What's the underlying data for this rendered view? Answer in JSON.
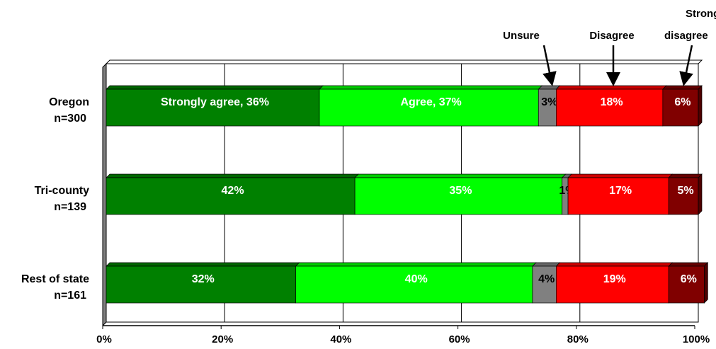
{
  "chart_data": {
    "type": "bar",
    "orientation": "horizontal",
    "stacked": true,
    "categories": [
      {
        "name": "Oregon",
        "n": "n=300"
      },
      {
        "name": "Tri-county",
        "n": "n=139"
      },
      {
        "name": "Rest of state",
        "n": "n=161"
      }
    ],
    "series": [
      {
        "name": "Strongly agree",
        "color": "#008000",
        "text_color": "#ffffff",
        "values": [
          36,
          42,
          32
        ]
      },
      {
        "name": "Agree",
        "color": "#00ff00",
        "text_color": "#ffffff",
        "values": [
          37,
          35,
          40
        ]
      },
      {
        "name": "Unsure",
        "color": "#808080",
        "text_color": "#000000",
        "values": [
          3,
          1,
          4
        ]
      },
      {
        "name": "Disagree",
        "color": "#ff0000",
        "text_color": "#ffffff",
        "values": [
          18,
          17,
          19
        ]
      },
      {
        "name": "Strongly disagree",
        "color": "#800000",
        "text_color": "#ffffff",
        "values": [
          6,
          5,
          6
        ]
      }
    ],
    "data_labels": [
      [
        "Strongly agree, 36%",
        "Agree, 37%",
        "3%",
        "18%",
        "6%"
      ],
      [
        "42%",
        "35%",
        "1%",
        "17%",
        "5%"
      ],
      [
        "32%",
        "40%",
        "4%",
        "19%",
        "6%"
      ]
    ],
    "callouts": [
      "Unsure",
      "Disagree",
      "Strongly disagree"
    ],
    "xaxis": {
      "ticks": [
        "0%",
        "20%",
        "40%",
        "60%",
        "80%",
        "100%"
      ],
      "range": [
        0,
        100
      ],
      "grid": true
    }
  }
}
